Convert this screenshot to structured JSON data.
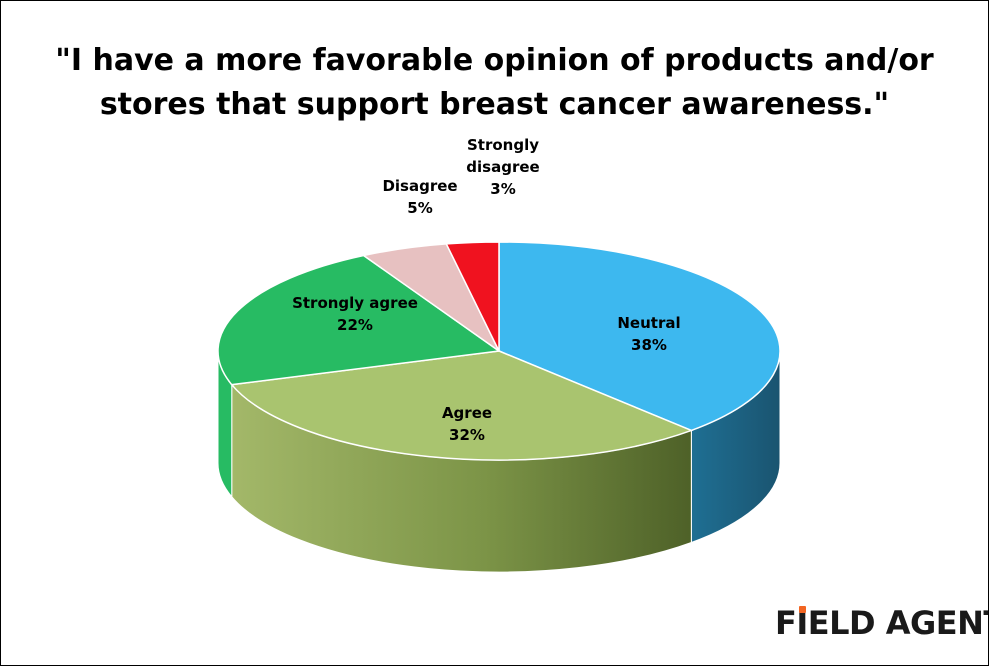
{
  "title": {
    "line1": "\"I have a more favorable opinion of products and/or",
    "line2": "stores that support breast cancer awareness.\""
  },
  "chart_data": {
    "type": "pie",
    "style": "3d",
    "title": "\"I have a more favorable opinion of products and/or stores that support breast cancer awareness.\"",
    "slices": [
      {
        "label": "Neutral",
        "value": 38,
        "value_label": "38%",
        "color": "#3db8ef"
      },
      {
        "label": "Agree",
        "value": 32,
        "value_label": "32%",
        "color": "#a9c46f"
      },
      {
        "label": "Strongly agree",
        "value": 22,
        "value_label": "22%",
        "color": "#27bb63"
      },
      {
        "label": "Disagree",
        "value": 5,
        "value_label": "5%",
        "color": "#e7c1c1"
      },
      {
        "label": "Strongly disagree",
        "value": 3,
        "value_label": "3%",
        "color": "#f0121f"
      }
    ],
    "label_lines": {
      "Neutral": [
        "Neutral",
        "38%"
      ],
      "Agree": [
        "Agree",
        "32%"
      ],
      "Strongly agree": [
        "Strongly agree",
        "22%"
      ],
      "Disagree": [
        "Disagree",
        "5%"
      ],
      "Strongly disagree": [
        "Strongly",
        "disagree",
        "3%"
      ]
    }
  },
  "logo": {
    "text_before": "F",
    "text_i": "I",
    "text_after": "ELD AGENT",
    "registered": "®",
    "accent_color": "#f26522"
  }
}
